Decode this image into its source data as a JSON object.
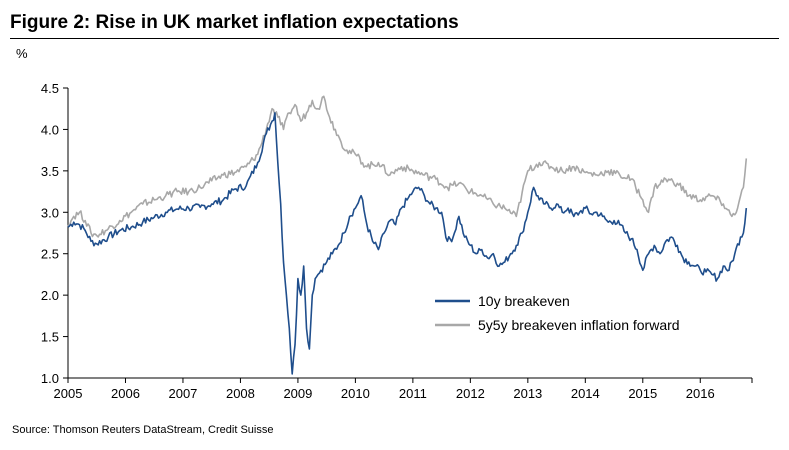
{
  "chart_data": {
    "type": "line",
    "title": "Figure 2: Rise in UK market inflation expectations",
    "ylabel": "%",
    "xlabel": "",
    "xlim": [
      2005.0,
      2016.9
    ],
    "ylim": [
      1.0,
      4.5
    ],
    "y_ticks": [
      1.0,
      1.5,
      2.0,
      2.5,
      3.0,
      3.5,
      4.0,
      4.5
    ],
    "y_tick_labels": [
      "1.0",
      "1.5",
      "2.0",
      "2.5",
      "3.0",
      "3.5",
      "4.0",
      "4.5"
    ],
    "x_ticks": [
      2005,
      2006,
      2007,
      2008,
      2009,
      2010,
      2011,
      2012,
      2013,
      2014,
      2015,
      2016
    ],
    "x_tick_labels": [
      "2005",
      "2006",
      "2007",
      "2008",
      "2009",
      "2010",
      "2011",
      "2012",
      "2013",
      "2014",
      "2015",
      "2016"
    ],
    "grid": false,
    "legend_position": "center-right",
    "series": [
      {
        "name": "10y breakeven",
        "color": "#1f4e8c",
        "x": [
          2005.0,
          2005.1,
          2005.2,
          2005.3,
          2005.4,
          2005.5,
          2005.7,
          2005.9,
          2006.1,
          2006.3,
          2006.5,
          2006.7,
          2006.9,
          2007.1,
          2007.3,
          2007.5,
          2007.7,
          2007.9,
          2008.1,
          2008.3,
          2008.45,
          2008.55,
          2008.6,
          2008.65,
          2008.7,
          2008.75,
          2008.8,
          2008.85,
          2008.9,
          2008.95,
          2009.0,
          2009.05,
          2009.1,
          2009.15,
          2009.2,
          2009.25,
          2009.3,
          2009.35,
          2009.4,
          2009.5,
          2009.6,
          2009.7,
          2009.8,
          2009.9,
          2010.0,
          2010.1,
          2010.2,
          2010.3,
          2010.4,
          2010.5,
          2010.6,
          2010.7,
          2010.8,
          2010.9,
          2011.0,
          2011.1,
          2011.2,
          2011.3,
          2011.4,
          2011.5,
          2011.6,
          2011.7,
          2011.8,
          2011.9,
          2012.0,
          2012.1,
          2012.2,
          2012.3,
          2012.4,
          2012.5,
          2012.6,
          2012.7,
          2012.8,
          2012.9,
          2013.0,
          2013.1,
          2013.2,
          2013.3,
          2013.4,
          2013.5,
          2013.6,
          2013.7,
          2013.8,
          2013.9,
          2014.0,
          2014.1,
          2014.2,
          2014.3,
          2014.4,
          2014.5,
          2014.6,
          2014.7,
          2014.8,
          2014.9,
          2015.0,
          2015.1,
          2015.2,
          2015.3,
          2015.4,
          2015.5,
          2015.6,
          2015.7,
          2015.8,
          2015.9,
          2016.0,
          2016.1,
          2016.2,
          2016.3,
          2016.4,
          2016.5,
          2016.6,
          2016.7,
          2016.75,
          2016.8
        ],
        "values": [
          2.82,
          2.88,
          2.85,
          2.78,
          2.65,
          2.62,
          2.7,
          2.78,
          2.82,
          2.88,
          2.94,
          3.0,
          3.04,
          3.05,
          3.06,
          3.1,
          3.15,
          3.28,
          3.32,
          3.6,
          3.95,
          4.1,
          4.2,
          3.6,
          3.1,
          2.4,
          2.0,
          1.6,
          1.05,
          1.4,
          2.2,
          2.0,
          2.35,
          1.6,
          1.35,
          2.0,
          2.2,
          2.25,
          2.3,
          2.4,
          2.5,
          2.6,
          2.75,
          2.95,
          3.05,
          3.2,
          2.85,
          2.65,
          2.55,
          2.75,
          2.9,
          2.85,
          3.05,
          3.15,
          3.25,
          3.3,
          3.2,
          3.1,
          3.05,
          3.0,
          2.65,
          2.7,
          2.95,
          2.7,
          2.6,
          2.5,
          2.55,
          2.45,
          2.5,
          2.35,
          2.4,
          2.5,
          2.6,
          2.75,
          3.0,
          3.3,
          3.15,
          3.1,
          3.05,
          3.1,
          3.0,
          3.05,
          2.95,
          3.0,
          3.05,
          2.98,
          3.0,
          2.95,
          2.88,
          2.9,
          2.85,
          2.75,
          2.68,
          2.55,
          2.3,
          2.5,
          2.6,
          2.5,
          2.65,
          2.7,
          2.6,
          2.45,
          2.4,
          2.35,
          2.3,
          2.28,
          2.25,
          2.2,
          2.35,
          2.3,
          2.5,
          2.7,
          2.75,
          3.05
        ]
      },
      {
        "name": "5y5y breakeven inflation forward",
        "color": "#a8a8a8",
        "x": [
          2005.0,
          2005.1,
          2005.2,
          2005.3,
          2005.4,
          2005.5,
          2005.7,
          2005.9,
          2006.1,
          2006.3,
          2006.5,
          2006.7,
          2006.9,
          2007.1,
          2007.3,
          2007.5,
          2007.7,
          2007.9,
          2008.1,
          2008.3,
          2008.45,
          2008.55,
          2008.65,
          2008.75,
          2008.85,
          2008.95,
          2009.05,
          2009.15,
          2009.25,
          2009.35,
          2009.45,
          2009.55,
          2009.65,
          2009.75,
          2009.85,
          2010.0,
          2010.2,
          2010.4,
          2010.6,
          2010.8,
          2011.0,
          2011.2,
          2011.4,
          2011.6,
          2011.8,
          2012.0,
          2012.2,
          2012.4,
          2012.6,
          2012.8,
          2013.0,
          2013.2,
          2013.4,
          2013.6,
          2013.8,
          2014.0,
          2014.2,
          2014.4,
          2014.6,
          2014.8,
          2015.0,
          2015.1,
          2015.2,
          2015.4,
          2015.6,
          2015.8,
          2016.0,
          2016.2,
          2016.4,
          2016.55,
          2016.65,
          2016.75,
          2016.8
        ],
        "values": [
          2.85,
          2.95,
          3.0,
          2.9,
          2.75,
          2.72,
          2.8,
          2.9,
          3.0,
          3.1,
          3.15,
          3.2,
          3.25,
          3.25,
          3.3,
          3.38,
          3.45,
          3.48,
          3.55,
          3.7,
          4.0,
          4.25,
          4.15,
          4.0,
          4.2,
          4.3,
          4.1,
          4.2,
          4.35,
          4.25,
          4.4,
          4.15,
          4.0,
          3.85,
          3.75,
          3.7,
          3.55,
          3.6,
          3.45,
          3.55,
          3.5,
          3.45,
          3.4,
          3.3,
          3.35,
          3.25,
          3.2,
          3.1,
          3.05,
          2.95,
          3.5,
          3.6,
          3.55,
          3.5,
          3.55,
          3.48,
          3.45,
          3.5,
          3.45,
          3.4,
          3.15,
          3.0,
          3.3,
          3.4,
          3.35,
          3.2,
          3.15,
          3.2,
          3.1,
          2.95,
          3.05,
          3.3,
          3.65
        ]
      }
    ]
  },
  "source": "Source: Thomson Reuters DataStream, Credit Suisse"
}
